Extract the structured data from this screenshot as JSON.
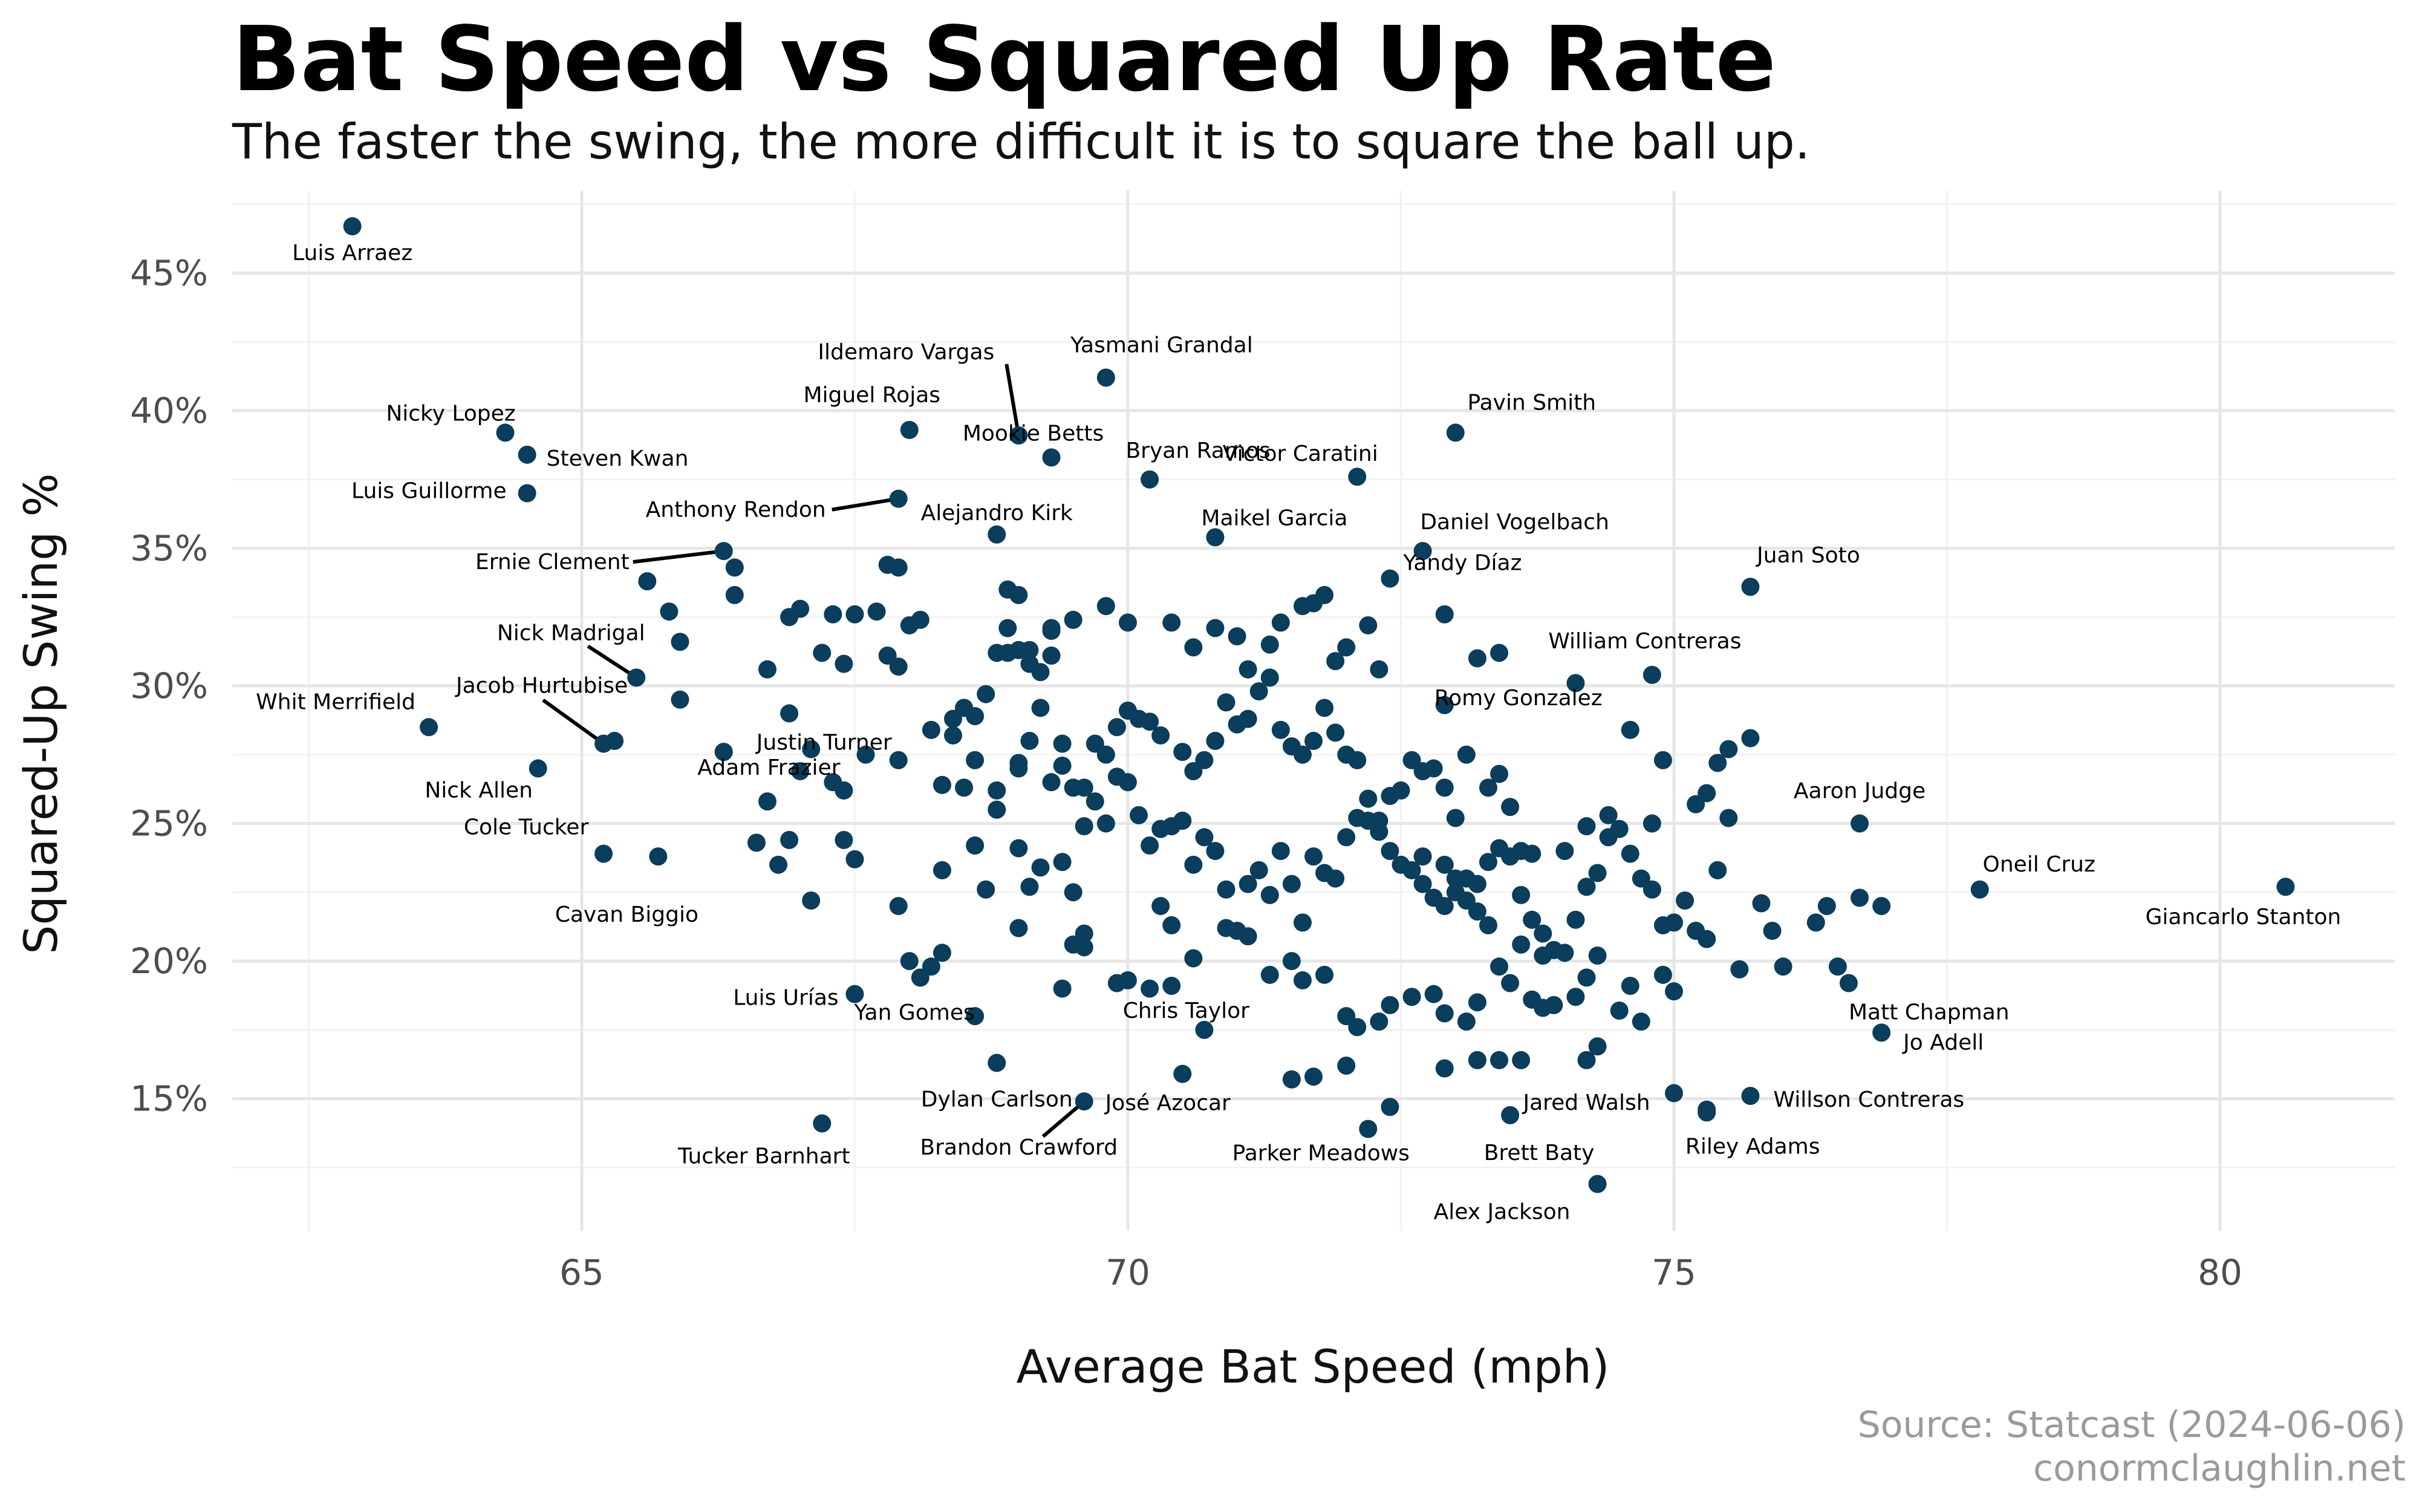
{
  "title": "Bat Speed vs Squared Up Rate",
  "subtitle": "The faster the swing, the more difficult it is to square the ball up.",
  "source_line1": "Source: Statcast (2024-06-06)",
  "source_line2": "conormclaughlin.net",
  "colors": {
    "point": "#0b3d5c",
    "grid_major": "#e6e6e6",
    "grid_minor": "#f2f2f2",
    "axis_text": "#4d4d4d",
    "label": "#000000",
    "source": "#9a9a9a"
  },
  "chart_data": {
    "type": "scatter",
    "title": "Bat Speed vs Squared Up Rate",
    "subtitle": "The faster the swing, the more difficult it is to square the ball up.",
    "xlabel": "Average Bat Speed (mph)",
    "ylabel": "Squared-Up Swing %",
    "xlim": [
      61.8,
      81.6
    ],
    "ylim": [
      10.2,
      48.0
    ],
    "x_ticks": [
      65,
      70,
      75,
      80
    ],
    "x_tick_labels": [
      "65",
      "70",
      "75",
      "80"
    ],
    "y_ticks": [
      15,
      20,
      25,
      30,
      35,
      40,
      45
    ],
    "y_tick_labels": [
      "15%",
      "20%",
      "25%",
      "30%",
      "35%",
      "40%",
      "45%"
    ],
    "grid": true,
    "labeled_points": [
      {
        "name": "Luis Arraez",
        "x": 62.9,
        "y": 46.7
      },
      {
        "name": "Yasmani Grandal",
        "x": 69.8,
        "y": 41.2
      },
      {
        "name": "Ildemaro Vargas",
        "x": 69.0,
        "y": 39.1
      },
      {
        "name": "Mookie Betts",
        "x": 69.3,
        "y": 38.3
      },
      {
        "name": "Nicky Lopez",
        "x": 64.3,
        "y": 39.2
      },
      {
        "name": "Steven Kwan",
        "x": 64.5,
        "y": 38.4
      },
      {
        "name": "Luis Guillorme",
        "x": 64.5,
        "y": 37.0
      },
      {
        "name": "Miguel Rojas",
        "x": 68.0,
        "y": 39.3
      },
      {
        "name": "Anthony Rendon",
        "x": 67.9,
        "y": 36.8
      },
      {
        "name": "Alejandro Kirk",
        "x": 68.8,
        "y": 35.5
      },
      {
        "name": "Bryan Ramos",
        "x": 70.2,
        "y": 37.5
      },
      {
        "name": "Victor Caratini",
        "x": 72.1,
        "y": 37.6
      },
      {
        "name": "Pavin Smith",
        "x": 73.0,
        "y": 39.2
      },
      {
        "name": "Maikel Garcia",
        "x": 70.8,
        "y": 35.4
      },
      {
        "name": "Daniel Vogelbach",
        "x": 72.7,
        "y": 34.9
      },
      {
        "name": "Yandy Díaz",
        "x": 72.4,
        "y": 33.9
      },
      {
        "name": "Ernie Clement",
        "x": 66.3,
        "y": 34.9
      },
      {
        "name": "Juan Soto",
        "x": 75.7,
        "y": 33.6
      },
      {
        "name": "Nick Madrigal",
        "x": 65.5,
        "y": 30.3
      },
      {
        "name": "William Contreras",
        "x": 74.8,
        "y": 30.4
      },
      {
        "name": "Jacob Hurtubise",
        "x": 65.2,
        "y": 27.9
      },
      {
        "name": "Whit Merrifield",
        "x": 63.6,
        "y": 28.5
      },
      {
        "name": "Justin Turner",
        "x": 66.3,
        "y": 27.6
      },
      {
        "name": "Romy Gonzalez",
        "x": 72.9,
        "y": 29.3
      },
      {
        "name": "Nick Allen",
        "x": 64.6,
        "y": 27.0
      },
      {
        "name": "Adam Frazier",
        "x": 67.4,
        "y": 26.2
      },
      {
        "name": "Aaron Judge",
        "x": 76.7,
        "y": 25.0
      },
      {
        "name": "Cole Tucker",
        "x": 65.2,
        "y": 23.9
      },
      {
        "name": "Cavan Biggio",
        "x": 65.7,
        "y": 23.8
      },
      {
        "name": "Oneil Cruz",
        "x": 77.8,
        "y": 22.6
      },
      {
        "name": "Giancarlo Stanton",
        "x": 80.6,
        "y": 22.7
      },
      {
        "name": "Luis Urías",
        "x": 67.5,
        "y": 18.8
      },
      {
        "name": "Matt Chapman",
        "x": 76.6,
        "y": 19.2
      },
      {
        "name": "Jo Adell",
        "x": 76.9,
        "y": 17.4
      },
      {
        "name": "Yan Gomes",
        "x": 68.6,
        "y": 18.0
      },
      {
        "name": "Chris Taylor",
        "x": 70.7,
        "y": 17.5
      },
      {
        "name": "Jared Walsh",
        "x": 74.2,
        "y": 16.4
      },
      {
        "name": "Willson Contreras",
        "x": 75.7,
        "y": 15.1
      },
      {
        "name": "Dylan Carlson",
        "x": 68.8,
        "y": 16.3
      },
      {
        "name": "Brandon Crawford",
        "x": 69.6,
        "y": 14.9
      },
      {
        "name": "José Azocar",
        "x": 70.5,
        "y": 15.9
      },
      {
        "name": "Riley Adams",
        "x": 75.3,
        "y": 14.5
      },
      {
        "name": "Tucker Barnhart",
        "x": 67.2,
        "y": 14.1
      },
      {
        "name": "Brett Baty",
        "x": 73.5,
        "y": 14.4
      },
      {
        "name": "Parker Meadows",
        "x": 72.2,
        "y": 13.9
      },
      {
        "name": "Alex Jackson",
        "x": 74.3,
        "y": 11.9
      }
    ],
    "points": [
      [
        65.3,
        28.0
      ],
      [
        65.6,
        33.8
      ],
      [
        65.8,
        32.7
      ],
      [
        65.9,
        31.6
      ],
      [
        65.9,
        29.5
      ],
      [
        66.4,
        34.3
      ],
      [
        66.4,
        33.3
      ],
      [
        66.7,
        30.6
      ],
      [
        66.9,
        29.0
      ],
      [
        66.9,
        32.5
      ],
      [
        67.0,
        32.8
      ],
      [
        67.1,
        27.7
      ],
      [
        67.2,
        31.2
      ],
      [
        67.3,
        32.6
      ],
      [
        67.4,
        30.8
      ],
      [
        67.5,
        32.6
      ],
      [
        67.7,
        32.7
      ],
      [
        67.8,
        34.4
      ],
      [
        67.9,
        34.3
      ],
      [
        67.8,
        31.1
      ],
      [
        67.9,
        30.7
      ],
      [
        68.0,
        32.2
      ],
      [
        68.1,
        32.4
      ],
      [
        67.9,
        27.3
      ],
      [
        68.2,
        28.4
      ],
      [
        68.3,
        26.4
      ],
      [
        68.5,
        29.2
      ],
      [
        68.4,
        28.8
      ],
      [
        68.7,
        29.7
      ],
      [
        68.8,
        31.2
      ],
      [
        68.9,
        33.5
      ],
      [
        68.9,
        32.1
      ],
      [
        69.0,
        33.3
      ],
      [
        69.0,
        31.3
      ],
      [
        69.1,
        30.8
      ],
      [
        69.2,
        30.5
      ],
      [
        69.3,
        32.1
      ],
      [
        69.3,
        31.1
      ],
      [
        69.2,
        29.2
      ],
      [
        69.4,
        27.9
      ],
      [
        69.1,
        28.0
      ],
      [
        69.0,
        27.2
      ],
      [
        68.8,
        26.2
      ],
      [
        68.5,
        26.3
      ],
      [
        68.4,
        28.2
      ],
      [
        69.5,
        26.3
      ],
      [
        69.6,
        26.3
      ],
      [
        69.7,
        25.8
      ],
      [
        69.8,
        25.0
      ],
      [
        69.6,
        24.9
      ],
      [
        69.4,
        23.6
      ],
      [
        69.5,
        22.5
      ],
      [
        69.6,
        21.0
      ],
      [
        69.5,
        20.6
      ],
      [
        69.4,
        19.0
      ],
      [
        69.7,
        27.9
      ],
      [
        69.8,
        27.5
      ],
      [
        69.9,
        28.5
      ],
      [
        70.0,
        29.1
      ],
      [
        70.2,
        28.7
      ],
      [
        70.0,
        26.5
      ],
      [
        70.1,
        25.3
      ],
      [
        70.3,
        24.8
      ],
      [
        70.4,
        24.9
      ],
      [
        70.5,
        25.1
      ],
      [
        70.2,
        24.2
      ],
      [
        70.3,
        22.0
      ],
      [
        70.4,
        21.3
      ],
      [
        70.6,
        23.5
      ],
      [
        70.7,
        24.5
      ],
      [
        70.8,
        24.0
      ],
      [
        70.9,
        22.6
      ],
      [
        71.0,
        21.1
      ],
      [
        71.1,
        22.8
      ],
      [
        71.2,
        23.3
      ],
      [
        71.3,
        22.4
      ],
      [
        71.4,
        24.0
      ],
      [
        71.5,
        22.8
      ],
      [
        71.6,
        21.4
      ],
      [
        71.7,
        23.8
      ],
      [
        71.8,
        23.2
      ],
      [
        71.9,
        23.0
      ],
      [
        72.0,
        24.5
      ],
      [
        72.1,
        25.2
      ],
      [
        72.2,
        25.1
      ],
      [
        72.3,
        24.7
      ],
      [
        72.4,
        24.0
      ],
      [
        72.5,
        23.5
      ],
      [
        72.6,
        23.3
      ],
      [
        72.7,
        22.8
      ],
      [
        72.8,
        22.3
      ],
      [
        72.9,
        22.0
      ],
      [
        73.0,
        22.5
      ],
      [
        73.1,
        23.0
      ],
      [
        73.2,
        22.8
      ],
      [
        73.3,
        23.6
      ],
      [
        73.4,
        24.1
      ],
      [
        73.5,
        23.8
      ],
      [
        73.6,
        22.4
      ],
      [
        73.7,
        21.5
      ],
      [
        73.8,
        21.0
      ],
      [
        73.9,
        20.4
      ],
      [
        74.0,
        20.3
      ],
      [
        74.1,
        21.5
      ],
      [
        74.2,
        22.7
      ],
      [
        74.3,
        23.2
      ],
      [
        74.4,
        24.5
      ],
      [
        74.5,
        24.8
      ],
      [
        74.6,
        23.9
      ],
      [
        74.7,
        23.0
      ],
      [
        74.8,
        22.6
      ],
      [
        74.9,
        21.3
      ],
      [
        75.0,
        21.4
      ],
      [
        75.1,
        22.2
      ],
      [
        75.2,
        21.1
      ],
      [
        75.3,
        20.8
      ],
      [
        75.4,
        23.3
      ],
      [
        75.5,
        25.2
      ],
      [
        75.8,
        22.1
      ],
      [
        75.9,
        21.1
      ],
      [
        76.0,
        19.8
      ],
      [
        76.3,
        21.4
      ],
      [
        76.4,
        22.0
      ],
      [
        76.7,
        22.3
      ],
      [
        76.9,
        22.0
      ],
      [
        76.5,
        19.8
      ],
      [
        75.6,
        19.7
      ],
      [
        74.9,
        19.5
      ],
      [
        74.6,
        19.1
      ],
      [
        74.3,
        20.2
      ],
      [
        74.1,
        18.7
      ],
      [
        73.8,
        18.3
      ],
      [
        73.7,
        18.6
      ],
      [
        73.5,
        19.2
      ],
      [
        73.4,
        19.8
      ],
      [
        73.2,
        18.5
      ],
      [
        73.1,
        17.8
      ],
      [
        72.9,
        18.1
      ],
      [
        72.8,
        18.8
      ],
      [
        72.6,
        18.7
      ],
      [
        72.4,
        18.4
      ],
      [
        72.3,
        17.8
      ],
      [
        72.1,
        17.6
      ],
      [
        72.0,
        18.0
      ],
      [
        71.8,
        19.5
      ],
      [
        71.6,
        19.3
      ],
      [
        71.5,
        20.0
      ],
      [
        71.3,
        19.5
      ],
      [
        71.1,
        20.9
      ],
      [
        70.9,
        21.2
      ],
      [
        70.6,
        20.1
      ],
      [
        70.4,
        19.1
      ],
      [
        70.2,
        19.0
      ],
      [
        70.0,
        19.3
      ],
      [
        69.9,
        19.2
      ],
      [
        69.6,
        20.5
      ],
      [
        69.0,
        21.2
      ],
      [
        69.1,
        22.7
      ],
      [
        69.2,
        23.4
      ],
      [
        69.0,
        24.1
      ],
      [
        68.7,
        22.6
      ],
      [
        68.6,
        24.2
      ],
      [
        68.3,
        23.3
      ],
      [
        67.9,
        22.0
      ],
      [
        67.5,
        23.7
      ],
      [
        67.4,
        24.4
      ],
      [
        67.1,
        22.2
      ],
      [
        66.9,
        24.4
      ],
      [
        66.8,
        23.5
      ],
      [
        66.6,
        24.3
      ],
      [
        66.7,
        25.8
      ],
      [
        66.3,
        27.6
      ],
      [
        68.2,
        19.8
      ],
      [
        68.0,
        20.0
      ],
      [
        68.3,
        20.3
      ],
      [
        68.1,
        19.4
      ],
      [
        68.6,
        27.3
      ],
      [
        68.8,
        25.5
      ],
      [
        69.0,
        27.0
      ],
      [
        69.3,
        26.5
      ],
      [
        69.4,
        27.1
      ],
      [
        69.9,
        26.7
      ],
      [
        70.1,
        28.8
      ],
      [
        70.3,
        28.2
      ],
      [
        70.5,
        27.6
      ],
      [
        70.6,
        26.9
      ],
      [
        70.7,
        27.3
      ],
      [
        70.8,
        28.0
      ],
      [
        70.9,
        29.4
      ],
      [
        71.0,
        28.6
      ],
      [
        71.1,
        28.8
      ],
      [
        71.2,
        29.8
      ],
      [
        71.3,
        30.3
      ],
      [
        71.4,
        28.4
      ],
      [
        71.5,
        27.8
      ],
      [
        71.6,
        27.5
      ],
      [
        71.7,
        28.0
      ],
      [
        71.8,
        29.2
      ],
      [
        71.9,
        28.3
      ],
      [
        72.0,
        27.5
      ],
      [
        72.1,
        27.3
      ],
      [
        72.2,
        25.9
      ],
      [
        72.3,
        25.1
      ],
      [
        72.4,
        26.0
      ],
      [
        72.5,
        26.2
      ],
      [
        72.6,
        27.3
      ],
      [
        72.7,
        26.9
      ],
      [
        72.8,
        27.0
      ],
      [
        72.9,
        26.3
      ],
      [
        73.0,
        25.2
      ],
      [
        73.1,
        27.5
      ],
      [
        73.3,
        26.3
      ],
      [
        73.4,
        26.8
      ],
      [
        73.5,
        25.6
      ],
      [
        73.6,
        24.0
      ],
      [
        73.7,
        23.9
      ],
      [
        74.0,
        24.0
      ],
      [
        74.2,
        24.9
      ],
      [
        74.4,
        25.3
      ],
      [
        74.6,
        28.4
      ],
      [
        74.8,
        25.0
      ],
      [
        74.9,
        27.3
      ],
      [
        75.2,
        25.7
      ],
      [
        75.3,
        26.1
      ],
      [
        75.4,
        27.2
      ],
      [
        75.5,
        27.7
      ],
      [
        75.7,
        28.1
      ],
      [
        70.4,
        32.3
      ],
      [
        70.6,
        31.4
      ],
      [
        70.8,
        32.1
      ],
      [
        71.0,
        31.8
      ],
      [
        71.1,
        30.6
      ],
      [
        71.3,
        31.5
      ],
      [
        71.4,
        32.3
      ],
      [
        71.6,
        32.9
      ],
      [
        71.7,
        33.0
      ],
      [
        71.8,
        33.3
      ],
      [
        71.9,
        30.9
      ],
      [
        72.0,
        31.4
      ],
      [
        72.2,
        32.2
      ],
      [
        72.3,
        30.6
      ],
      [
        72.9,
        32.6
      ],
      [
        73.2,
        31.0
      ],
      [
        73.4,
        31.2
      ],
      [
        74.1,
        30.1
      ],
      [
        70.0,
        32.3
      ],
      [
        69.8,
        32.9
      ],
      [
        69.5,
        32.4
      ],
      [
        69.3,
        32.0
      ],
      [
        69.1,
        31.3
      ],
      [
        68.9,
        31.2
      ],
      [
        68.6,
        28.9
      ],
      [
        68.5,
        29.2
      ],
      [
        67.6,
        27.5
      ],
      [
        67.3,
        26.5
      ],
      [
        67.0,
        26.9
      ],
      [
        72.7,
        23.8
      ],
      [
        72.9,
        23.5
      ],
      [
        73.0,
        23.0
      ],
      [
        73.1,
        22.2
      ],
      [
        73.2,
        21.8
      ],
      [
        73.3,
        21.3
      ],
      [
        73.6,
        20.6
      ],
      [
        73.8,
        20.2
      ],
      [
        74.2,
        19.4
      ],
      [
        74.5,
        18.2
      ],
      [
        74.7,
        17.8
      ],
      [
        75.0,
        18.9
      ],
      [
        73.9,
        18.4
      ],
      [
        73.6,
        16.4
      ],
      [
        73.4,
        16.4
      ],
      [
        73.2,
        16.4
      ],
      [
        72.9,
        16.1
      ],
      [
        72.4,
        14.7
      ],
      [
        72.0,
        16.2
      ],
      [
        71.7,
        15.8
      ],
      [
        71.5,
        15.7
      ],
      [
        74.3,
        16.9
      ],
      [
        75.3,
        14.6
      ],
      [
        75.0,
        15.2
      ]
    ]
  }
}
